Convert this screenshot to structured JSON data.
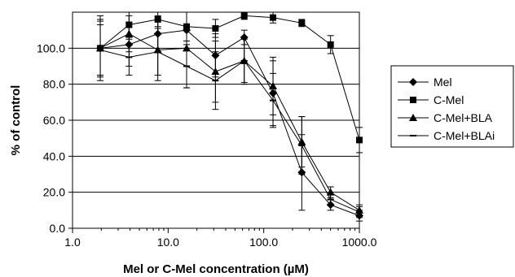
{
  "chart_data": {
    "type": "line",
    "title": "",
    "xlabel": "Mel or C-Mel concentration (µM)",
    "ylabel": "% of control",
    "x_scale": "log",
    "xlim": [
      1.0,
      1000.0
    ],
    "ylim": [
      0.0,
      120.0
    ],
    "x_ticks": [
      1.0,
      10.0,
      100.0,
      1000.0
    ],
    "x_tick_labels": [
      "1.0",
      "10.0",
      "100.0",
      "1000.0"
    ],
    "y_ticks": [
      0,
      20,
      40,
      60,
      80,
      100
    ],
    "y_tick_labels": [
      "0.0",
      "20.0",
      "40.0",
      "60.0",
      "80.0",
      "100.0"
    ],
    "grid": "horizontal",
    "legend_position": "right",
    "x": [
      1.95,
      3.9,
      7.8,
      15.6,
      31.25,
      62.5,
      125,
      250,
      500,
      1000
    ],
    "series": [
      {
        "name": "Mel",
        "marker": "diamond",
        "values": [
          100,
          102,
          108,
          110,
          96,
          106,
          75,
          31,
          13,
          7
        ],
        "errors": [
          16,
          12,
          10,
          10,
          12,
          4,
          18,
          21,
          3,
          3
        ]
      },
      {
        "name": "C-Mel",
        "marker": "square",
        "values": [
          100,
          113,
          116,
          112,
          111,
          118,
          117,
          114,
          102,
          49
        ],
        "errors": [
          18,
          7,
          4,
          8,
          5,
          2,
          3,
          2,
          5,
          7
        ]
      },
      {
        "name": "C-Mel+BLA",
        "marker": "triangle",
        "values": [
          100,
          108,
          99,
          100,
          87,
          93,
          79,
          48,
          20,
          10
        ],
        "errors": [
          15,
          10,
          17,
          22,
          17,
          13,
          16,
          14,
          3,
          3
        ]
      },
      {
        "name": "C-Mel+BLAi",
        "marker": "dash",
        "values": [
          99,
          95,
          98,
          90,
          82,
          93,
          71,
          46,
          16,
          9
        ],
        "errors": [
          14,
          10,
          13,
          12,
          16,
          12,
          15,
          16,
          3,
          3
        ]
      }
    ]
  }
}
